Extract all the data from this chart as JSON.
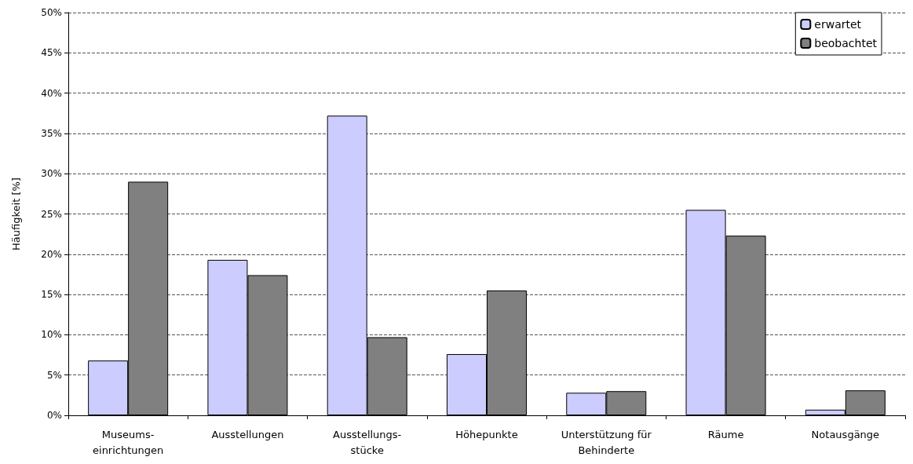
{
  "chart_data": {
    "type": "bar",
    "ylabel": "Häufigkeit [%]",
    "categories": [
      "Museums-\neinrichtungen",
      "Ausstellungen",
      "Ausstellungs-\nstücke",
      "Höhepunkte",
      "Unterstützung für\nBehinderte",
      "Räume",
      "Notausgänge"
    ],
    "series": [
      {
        "name": "erwartet",
        "color": "#ccccff",
        "values": [
          6.8,
          19.3,
          37.2,
          7.6,
          2.8,
          25.5,
          0.7
        ]
      },
      {
        "name": "beobachtet",
        "color": "#808080",
        "values": [
          29.0,
          17.4,
          9.7,
          15.5,
          3.0,
          22.3,
          3.1
        ]
      }
    ],
    "ylim": [
      0,
      50
    ],
    "yticks": [
      {
        "value": 0,
        "label": "0%"
      },
      {
        "value": 5,
        "label": "5%"
      },
      {
        "value": 10,
        "label": "10%"
      },
      {
        "value": 15,
        "label": "15%"
      },
      {
        "value": 20,
        "label": "20%"
      },
      {
        "value": 25,
        "label": "25%"
      },
      {
        "value": 30,
        "label": "30%"
      },
      {
        "value": 35,
        "label": "35%"
      },
      {
        "value": 40,
        "label": "40%"
      },
      {
        "value": 45,
        "label": "45%"
      },
      {
        "value": 50,
        "label": "50%"
      }
    ],
    "grid": "y",
    "legend": "top right",
    "line_style": "dashed"
  }
}
